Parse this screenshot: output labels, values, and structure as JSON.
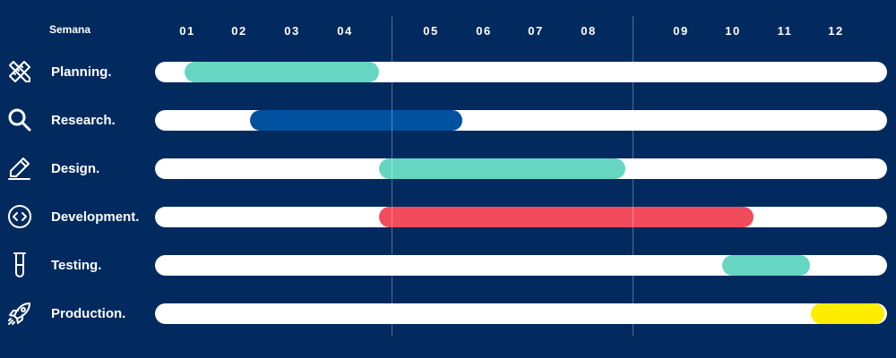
{
  "chart_data": {
    "type": "gantt",
    "header": "Semana",
    "weeks": [
      "01",
      "02",
      "03",
      "04",
      "05",
      "06",
      "07",
      "08",
      "09",
      "10",
      "11",
      "12"
    ],
    "tasks": [
      {
        "name": "Planning.",
        "icon": "pencil-ruler-icon",
        "start": 0.95,
        "end": 4.4,
        "color": "#66d6c3"
      },
      {
        "name": "Research.",
        "icon": "search-icon",
        "start": 2.2,
        "end": 5.6,
        "color": "#0051a0"
      },
      {
        "name": "Design.",
        "icon": "pen-icon",
        "start": 4.4,
        "end": 8.4,
        "color": "#66d6c3"
      },
      {
        "name": "Development.",
        "icon": "code-icon",
        "start": 4.4,
        "end": 10.4,
        "color": "#f24b5b"
      },
      {
        "name": "Testing.",
        "icon": "test-tube-icon",
        "start": 9.8,
        "end": 11.5,
        "color": "#66d6c3"
      },
      {
        "name": "Production.",
        "icon": "rocket-icon",
        "start": 11.5,
        "end": 12.95,
        "color": "#ffed00"
      }
    ]
  }
}
